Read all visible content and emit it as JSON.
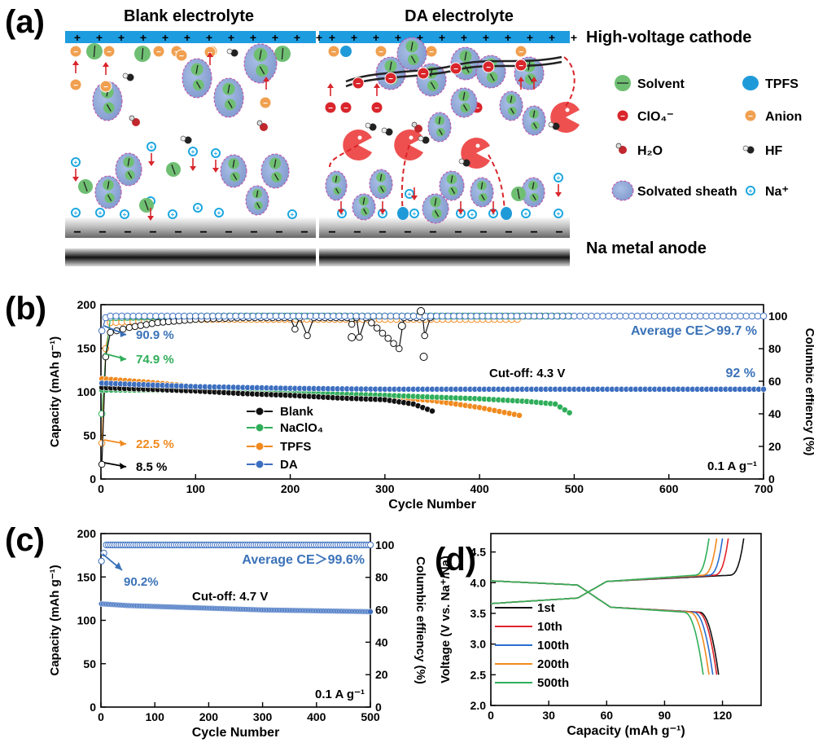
{
  "panels": {
    "a": {
      "tag": "(a)",
      "left_title": "Blank electrolyte",
      "right_title": "DA electrolyte",
      "cathode_label": "High-voltage cathode",
      "anode_label": "Na metal anode",
      "plus_sign": "+",
      "minus_sign": "−",
      "legend": [
        {
          "key": "solvent",
          "label": "Solvent",
          "color": "#6fbf73"
        },
        {
          "key": "tpfs",
          "label": "TPFS",
          "color": "#1f9ad9"
        },
        {
          "key": "clo4",
          "label": "ClO₄⁻",
          "color": "#d9252b"
        },
        {
          "key": "anion",
          "label": "Anion",
          "color": "#f0a050"
        },
        {
          "key": "h2o",
          "label": "H₂O",
          "color": "#333333"
        },
        {
          "key": "hf",
          "label": "HF",
          "color": "#555555"
        },
        {
          "key": "sheath",
          "label": "Solvated sheath",
          "color": "#8fa9d8"
        },
        {
          "key": "na",
          "label": "Na⁺",
          "color": "#1ea7e0"
        }
      ]
    },
    "b": {
      "tag": "(b)"
    },
    "c": {
      "tag": "(c)"
    },
    "d": {
      "tag": "(d)"
    }
  },
  "colors": {
    "blank": "#111111",
    "naclo4": "#2fae5a",
    "tpfs": "#f08a1e",
    "da": "#3d6fc0",
    "cathode": "#1e9ce0",
    "ann_blue": "#3a72b8"
  },
  "chart_data": [
    {
      "id": "b",
      "type": "line",
      "xlabel": "Cycle Number",
      "ylabel": "Capacity (mAh g⁻¹)",
      "y2label": "Columbic effiency (%)",
      "xlim": [
        0,
        700
      ],
      "ylim": [
        0,
        200
      ],
      "y2lim": [
        0,
        107
      ],
      "xticks": [
        0,
        100,
        200,
        300,
        400,
        500,
        600,
        700
      ],
      "yticks": [
        0,
        50,
        100,
        150,
        200
      ],
      "y2ticks": [
        0,
        20,
        40,
        60,
        80,
        100
      ],
      "legend_position": "center-left",
      "series": [
        {
          "name": "Blank",
          "key": "blank",
          "capacity": [
            [
              1,
              105
            ],
            [
              20,
              104
            ],
            [
              50,
              103
            ],
            [
              100,
              101
            ],
            [
              150,
              98
            ],
            [
              200,
              96
            ],
            [
              250,
              93
            ],
            [
              300,
              91
            ],
            [
              330,
              86
            ],
            [
              350,
              78
            ]
          ],
          "ce": [
            [
              1,
              9
            ],
            [
              5,
              75
            ],
            [
              10,
              90
            ],
            [
              30,
              93
            ],
            [
              60,
              96
            ],
            [
              100,
              98
            ],
            [
              150,
              99
            ],
            [
              200,
              99
            ],
            [
              205,
              92
            ],
            [
              210,
              99
            ],
            [
              218,
              88
            ],
            [
              225,
              99
            ],
            [
              260,
              99
            ],
            [
              265,
              95
            ],
            [
              270,
              99
            ],
            [
              273,
              87
            ],
            [
              280,
              99
            ],
            [
              315,
              80
            ],
            [
              320,
              99
            ],
            [
              340,
              99
            ],
            [
              342,
              88
            ],
            [
              348,
              99
            ]
          ]
        },
        {
          "name": "NaClO₄",
          "key": "naclo4",
          "capacity": [
            [
              1,
              102
            ],
            [
              50,
              102
            ],
            [
              100,
              101
            ],
            [
              200,
              99
            ],
            [
              300,
              96
            ],
            [
              400,
              92
            ],
            [
              450,
              89
            ],
            [
              480,
              86
            ],
            [
              495,
              76
            ]
          ],
          "ce": [
            [
              1,
              40
            ],
            [
              5,
              75
            ],
            [
              10,
              99
            ],
            [
              100,
              100
            ],
            [
              200,
              100
            ],
            [
              300,
              100
            ],
            [
              400,
              100
            ],
            [
              495,
              100
            ]
          ]
        },
        {
          "name": "TPFS",
          "key": "tpfs",
          "capacity": [
            [
              1,
              115
            ],
            [
              50,
              111
            ],
            [
              100,
              106
            ],
            [
              200,
              102
            ],
            [
              300,
              94
            ],
            [
              350,
              90
            ],
            [
              400,
              82
            ],
            [
              442,
              73
            ]
          ],
          "ce": [
            [
              1,
              22
            ],
            [
              5,
              80
            ],
            [
              10,
              96
            ],
            [
              100,
              98
            ],
            [
              200,
              98
            ],
            [
              300,
              98
            ],
            [
              440,
              98
            ]
          ]
        },
        {
          "name": "DA",
          "key": "da",
          "capacity": [
            [
              1,
              110
            ],
            [
              50,
              108
            ],
            [
              100,
              106
            ],
            [
              200,
              104
            ],
            [
              300,
              103
            ],
            [
              400,
              103
            ],
            [
              500,
              103
            ],
            [
              600,
              103
            ],
            [
              700,
              103
            ]
          ],
          "ce": [
            [
              1,
              91
            ],
            [
              5,
              99
            ],
            [
              10,
              100
            ],
            [
              100,
              100
            ],
            [
              300,
              100
            ],
            [
              500,
              100
            ],
            [
              700,
              100
            ]
          ]
        }
      ],
      "outliers": [
        [
          265,
          87
        ],
        [
          318,
          94
        ],
        [
          338,
          103
        ],
        [
          341,
          75
        ]
      ],
      "annotations": {
        "avg_ce": "Average CE＞99.7 %",
        "cutoff": "Cut-off: 4.3 V",
        "retention_da": "92 %",
        "rate": "0.1 A g⁻¹",
        "ice_da": "90.9 %",
        "ice_naclo4": "74.9 %",
        "ice_tpfs": "22.5 %",
        "ice_blank": "8.5 %"
      }
    },
    {
      "id": "c",
      "type": "scatter",
      "xlabel": "Cycle Number",
      "ylabel": "Capacity (mAh g⁻¹)",
      "y2label": "Columbic effiency (%)",
      "xlim": [
        0,
        500
      ],
      "ylim": [
        0,
        200
      ],
      "y2lim": [
        0,
        107
      ],
      "xticks": [
        0,
        100,
        200,
        300,
        400,
        500
      ],
      "yticks": [
        0,
        50,
        100,
        150,
        200
      ],
      "y2ticks": [
        0,
        20,
        40,
        60,
        80,
        100
      ],
      "series": [
        {
          "name": "capacity",
          "values": [
            [
              1,
              119
            ],
            [
              50,
              117
            ],
            [
              100,
              116
            ],
            [
              200,
              114
            ],
            [
              300,
              112
            ],
            [
              400,
              111
            ],
            [
              500,
              110
            ]
          ]
        },
        {
          "name": "ce",
          "values": [
            [
              1,
              90
            ],
            [
              10,
              100
            ],
            [
              100,
              100
            ],
            [
              300,
              100
            ],
            [
              500,
              100
            ]
          ]
        }
      ],
      "annotations": {
        "avg_ce": "Average CE＞99.6%",
        "ice": "90.2%",
        "cutoff": "Cut-off: 4.7 V",
        "rate": "0.1 A g⁻¹"
      }
    },
    {
      "id": "d",
      "type": "line",
      "xlabel": "Capacity (mAh g⁻¹)",
      "ylabel": "Voltage (V vs. Na⁺/Na)",
      "xlim": [
        0,
        140
      ],
      "ylim": [
        2.0,
        4.8
      ],
      "xticks": [
        0,
        30,
        60,
        90,
        120
      ],
      "yticks": [
        2.0,
        2.5,
        3.0,
        3.5,
        4.0,
        4.5
      ],
      "legend_position": "bottom-left",
      "series": [
        {
          "name": "1st",
          "color": "#111111",
          "charge_end": 131,
          "discharge_end": 118
        },
        {
          "name": "10th",
          "color": "#e0242a",
          "charge_end": 123,
          "discharge_end": 117
        },
        {
          "name": "100th",
          "color": "#2a6fd0",
          "charge_end": 120,
          "discharge_end": 115
        },
        {
          "name": "200th",
          "color": "#f08a1e",
          "charge_end": 117,
          "discharge_end": 113
        },
        {
          "name": "500th",
          "color": "#2fae5a",
          "charge_end": 113,
          "discharge_end": 110
        }
      ]
    }
  ]
}
